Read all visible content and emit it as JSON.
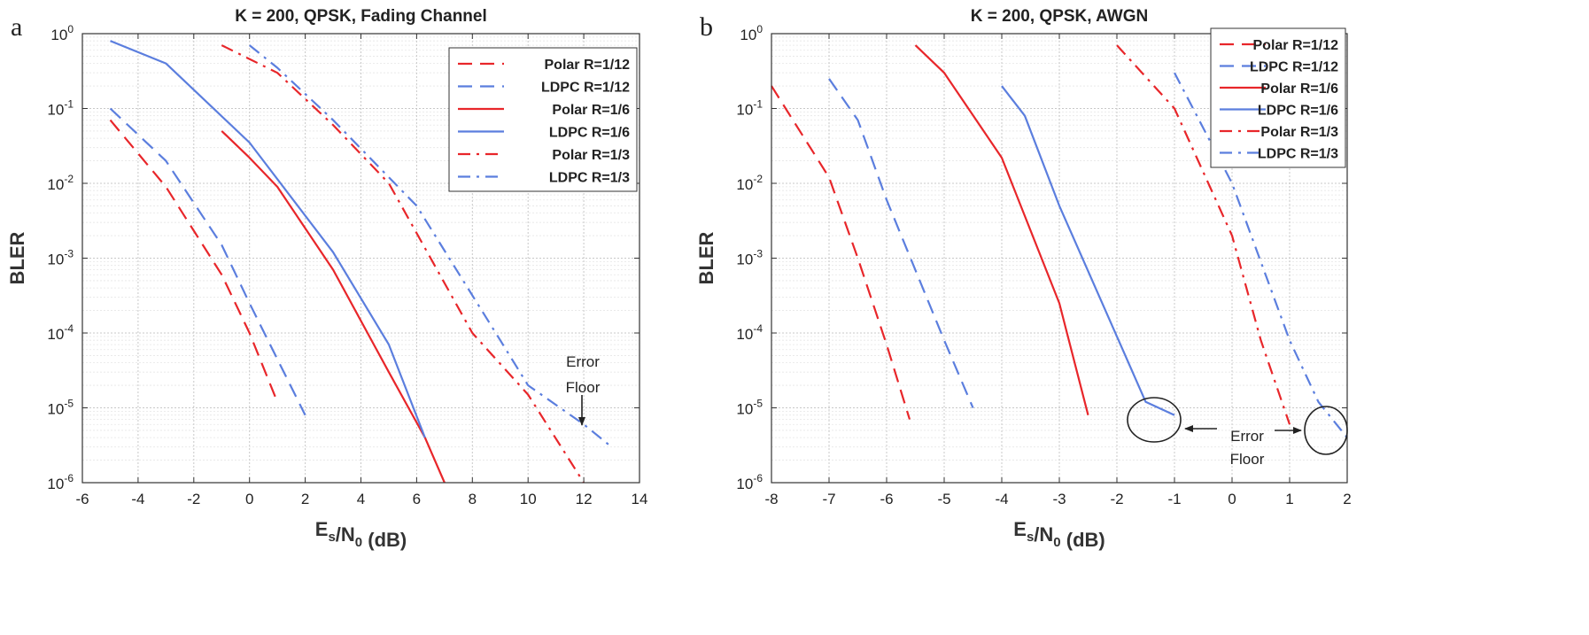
{
  "chart_data": [
    {
      "type": "line",
      "panel_label": "a",
      "title": "K = 200, QPSK, Fading Channel",
      "xlabel": "E_s/N_0 (dB)",
      "ylabel": "BLER",
      "xlim": [
        -6,
        14
      ],
      "ylim": [
        1e-06,
        1
      ],
      "yscale": "log",
      "grid": true,
      "legend_position": "top-right",
      "x_ticks": [
        "-6",
        "-4",
        "-2",
        "0",
        "2",
        "4",
        "6",
        "8",
        "10",
        "12",
        "14"
      ],
      "y_ticks": [
        {
          "base": "10",
          "exp": "0"
        },
        {
          "base": "10",
          "exp": "-1"
        },
        {
          "base": "10",
          "exp": "-2"
        },
        {
          "base": "10",
          "exp": "-3"
        },
        {
          "base": "10",
          "exp": "-4"
        },
        {
          "base": "10",
          "exp": "-5"
        },
        {
          "base": "10",
          "exp": "-6"
        }
      ],
      "series": [
        {
          "name": "Polar R=1/12",
          "color": "#e8262a",
          "style": "dashed",
          "x": [
            -5,
            -3,
            -1,
            0,
            1
          ],
          "y": [
            0.07,
            0.009,
            0.0006,
            0.0001,
            1.2e-05
          ]
        },
        {
          "name": "LDPC R=1/12",
          "color": "#5b7ede",
          "style": "dashed",
          "x": [
            -5,
            -3,
            -1,
            0,
            2
          ],
          "y": [
            0.1,
            0.02,
            0.0015,
            0.00025,
            8e-06
          ]
        },
        {
          "name": "Polar R=1/6",
          "color": "#e8262a",
          "style": "solid",
          "x": [
            -1,
            0,
            1,
            3,
            5,
            6.3,
            7
          ],
          "y": [
            0.05,
            0.022,
            0.009,
            0.0007,
            3e-05,
            4e-06,
            1e-06
          ]
        },
        {
          "name": "LDPC R=1/6",
          "color": "#5b7ede",
          "style": "solid",
          "x": [
            -5,
            -3,
            0,
            3,
            5,
            6.3
          ],
          "y": [
            0.8,
            0.4,
            0.035,
            0.0012,
            7e-05,
            4e-06
          ]
        },
        {
          "name": "Polar R=1/3",
          "color": "#e8262a",
          "style": "dashdot",
          "x": [
            -1,
            1,
            3,
            5,
            8,
            10,
            12
          ],
          "y": [
            0.7,
            0.3,
            0.06,
            0.01,
            0.0001,
            1.5e-05,
            1e-06
          ]
        },
        {
          "name": "LDPC R=1/3",
          "color": "#5b7ede",
          "style": "dashdot",
          "x": [
            0,
            1,
            3,
            6,
            9,
            10,
            12,
            13
          ],
          "y": [
            0.7,
            0.35,
            0.07,
            0.005,
            8e-05,
            2e-05,
            6e-06,
            3e-06
          ]
        }
      ],
      "annotations": [
        {
          "text": "Error",
          "x": 12,
          "y": 3e-05
        },
        {
          "text": "Floor",
          "x": 12,
          "y": 1.8e-05
        }
      ]
    },
    {
      "type": "line",
      "panel_label": "b",
      "title": "K = 200, QPSK, AWGN",
      "xlabel": "E_s/N_0 (dB)",
      "ylabel": "BLER",
      "xlim": [
        -8,
        2
      ],
      "ylim": [
        1e-06,
        1
      ],
      "yscale": "log",
      "grid": true,
      "legend_position": "top-right",
      "x_ticks": [
        "-8",
        "-7",
        "-6",
        "-5",
        "-4",
        "-3",
        "-2",
        "-1",
        "0",
        "1",
        "2"
      ],
      "y_ticks": [
        {
          "base": "10",
          "exp": "0"
        },
        {
          "base": "10",
          "exp": "-1"
        },
        {
          "base": "10",
          "exp": "-2"
        },
        {
          "base": "10",
          "exp": "-3"
        },
        {
          "base": "10",
          "exp": "-4"
        },
        {
          "base": "10",
          "exp": "-5"
        },
        {
          "base": "10",
          "exp": "-6"
        }
      ],
      "series": [
        {
          "name": "Polar R=1/12",
          "color": "#e8262a",
          "style": "dashed",
          "x": [
            -8,
            -7,
            -6.5,
            -6,
            -5.6
          ],
          "y": [
            0.2,
            0.012,
            0.001,
            7e-05,
            7e-06
          ]
        },
        {
          "name": "LDPC R=1/12",
          "color": "#5b7ede",
          "style": "dashed",
          "x": [
            -7,
            -6.5,
            -6,
            -5,
            -4.5
          ],
          "y": [
            0.25,
            0.07,
            0.006,
            8e-05,
            1e-05
          ]
        },
        {
          "name": "Polar R=1/6",
          "color": "#e8262a",
          "style": "solid",
          "x": [
            -5.5,
            -5,
            -4,
            -3,
            -2.5
          ],
          "y": [
            0.7,
            0.3,
            0.022,
            0.00025,
            8e-06
          ]
        },
        {
          "name": "LDPC R=1/6",
          "color": "#5b7ede",
          "style": "solid",
          "x": [
            -4,
            -3.6,
            -3,
            -2,
            -1.5,
            -1
          ],
          "y": [
            0.2,
            0.08,
            0.005,
            9e-05,
            1.2e-05,
            8e-06
          ]
        },
        {
          "name": "Polar R=1/3",
          "color": "#e8262a",
          "style": "dashdot",
          "x": [
            -2,
            -1,
            0,
            0.5,
            1
          ],
          "y": [
            0.7,
            0.1,
            0.002,
            8e-05,
            6e-06
          ]
        },
        {
          "name": "LDPC R=1/3",
          "color": "#5b7ede",
          "style": "dashdot",
          "x": [
            -1,
            0,
            1,
            1.5,
            2
          ],
          "y": [
            0.3,
            0.01,
            8e-05,
            1.2e-05,
            4e-06
          ]
        }
      ],
      "annotations": [
        {
          "text": "Error",
          "x": -0.1,
          "y": 6.5e-06
        },
        {
          "text": "Floor",
          "x": -0.1,
          "y": 3e-06
        }
      ]
    }
  ]
}
